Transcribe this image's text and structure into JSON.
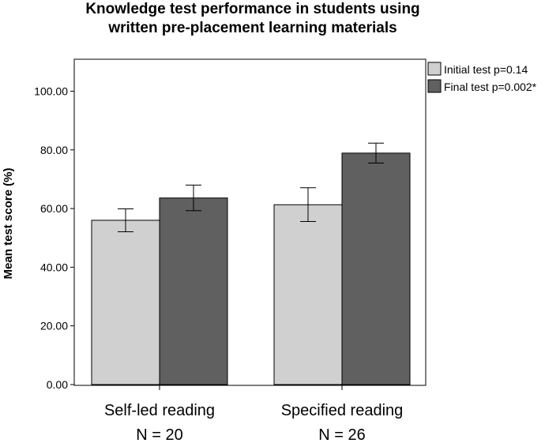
{
  "chart_data": {
    "type": "bar",
    "title_lines": [
      "Knowledge test performance in students using",
      "written pre-placement learning materials"
    ],
    "ylabel": "Mean test score (%)",
    "xlabel": "",
    "ylim": [
      0,
      110
    ],
    "yticks": [
      0,
      20,
      40,
      60,
      80,
      100
    ],
    "ytick_labels": [
      "0.00",
      "20.00",
      "40.00",
      "60.00",
      "80.00",
      "100.00"
    ],
    "categories": [
      "Self-led reading",
      "Specified reading"
    ],
    "category_sublabels": [
      "N = 20",
      "N = 26"
    ],
    "series": [
      {
        "name": "Initial test p=0.14",
        "color": "#d0d0d0",
        "values": [
          56.0,
          61.3
        ],
        "error_low": [
          52.1,
          55.6
        ],
        "error_high": [
          59.9,
          67.1
        ]
      },
      {
        "name": "Final test p=0.002*",
        "color": "#606060",
        "values": [
          63.6,
          78.9
        ],
        "error_low": [
          59.3,
          75.5
        ],
        "error_high": [
          68.0,
          82.3
        ]
      }
    ],
    "legend_position": "top-right",
    "grid": false
  }
}
